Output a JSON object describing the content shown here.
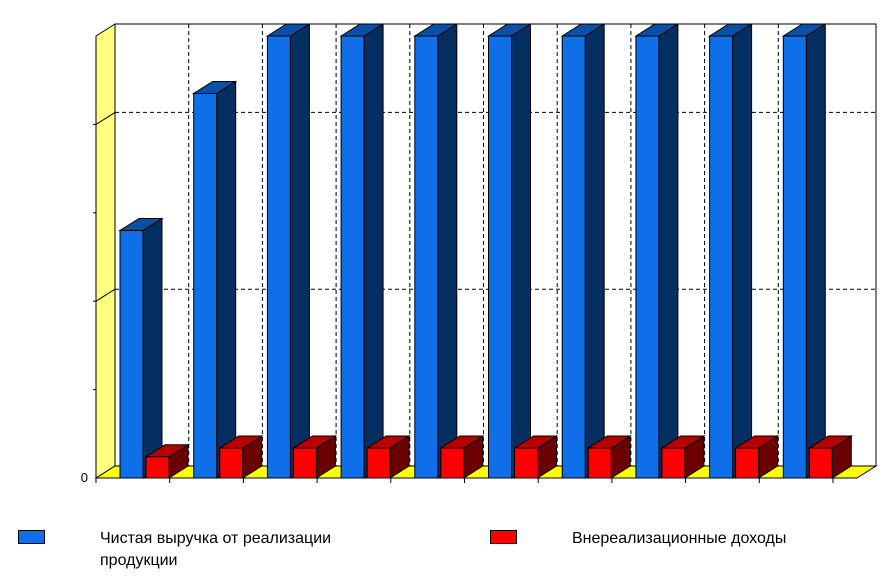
{
  "chart_data": {
    "type": "bar",
    "title": "",
    "xlabel": "",
    "ylabel": "",
    "categories": [
      "",
      "",
      "",
      "",
      "",
      "",
      "",
      "",
      "",
      ""
    ],
    "y_tick_labels": [
      "0"
    ],
    "ylim": [
      0,
      1
    ],
    "grid": true,
    "legend_position": "bottom",
    "series": [
      {
        "name": "Чистая выручка от реализации продукции",
        "color": "#0e6fe8",
        "values": [
          0.56,
          0.87,
          1.0,
          1.0,
          1.0,
          1.0,
          1.0,
          1.0,
          1.0,
          1.0
        ]
      },
      {
        "name": "Внереализационные доходы",
        "color": "#ff0000",
        "values": [
          0.048,
          0.068,
          0.068,
          0.068,
          0.068,
          0.068,
          0.068,
          0.068,
          0.068,
          0.068
        ]
      }
    ]
  }
}
